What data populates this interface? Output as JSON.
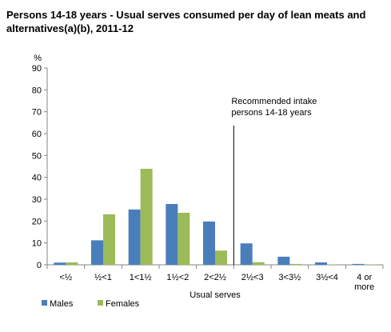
{
  "chart_data": {
    "type": "bar",
    "title": "Persons 14-18 years - Usual serves consumed per day of lean meats and alternatives(a)(b), 2011-12",
    "y_unit_label": "%",
    "xlabel": "Usual serves",
    "ylabel": "",
    "ylim": [
      0,
      90
    ],
    "yticks": [
      0,
      10,
      20,
      30,
      40,
      50,
      60,
      70,
      80,
      90
    ],
    "categories": [
      "<½",
      "½<1",
      "1<1½",
      "1½<2",
      "2<2½",
      "2½<3",
      "3<3½",
      "3½<4",
      "4 or more"
    ],
    "category_lines": [
      [
        "<½"
      ],
      [
        "½<1"
      ],
      [
        "1<1½"
      ],
      [
        "1½<2"
      ],
      [
        "2<2½"
      ],
      [
        "2½<3"
      ],
      [
        "3<3½"
      ],
      [
        "3½<4"
      ],
      [
        "4 or",
        "more"
      ]
    ],
    "series": [
      {
        "name": "Males",
        "color": "#4a7ebb",
        "values": [
          1.0,
          11.2,
          25.3,
          27.8,
          19.8,
          9.8,
          3.7,
          1.1,
          0.4
        ]
      },
      {
        "name": "Females",
        "color": "#9bbb59",
        "values": [
          1.1,
          23.1,
          43.9,
          23.8,
          6.5,
          1.2,
          0.4,
          0.1,
          0.1
        ]
      }
    ],
    "annotation": {
      "text_lines": [
        "Recommended intake",
        "persons 14-18 years"
      ],
      "after_category_index": 4
    },
    "grid": false,
    "legend_position": "bottom-left"
  }
}
